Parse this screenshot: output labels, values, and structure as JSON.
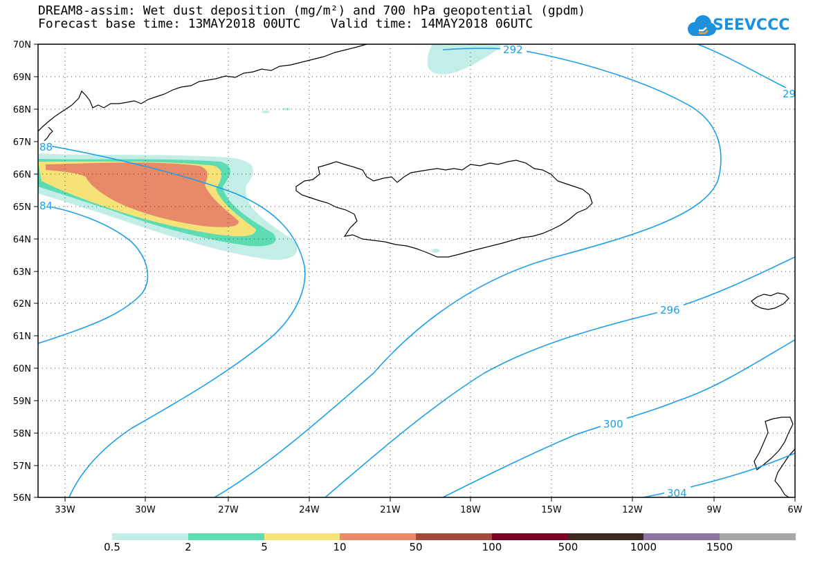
{
  "header": {
    "title_line1": "DREAM8-assim: Wet dust deposition (mg/m²) and 700 hPa geopotential (gpdm)",
    "title_line2": "Forecast base time: 13MAY2018 00UTC    Valid time: 14MAY2018 06UTC",
    "logo_text": "SEEVCCC"
  },
  "map": {
    "projection": "lat-lon",
    "lat_range": [
      56,
      70
    ],
    "lon_range": [
      -34.2,
      -6
    ],
    "lat_ticks": [
      "70N",
      "69N",
      "68N",
      "67N",
      "66N",
      "65N",
      "64N",
      "63N",
      "62N",
      "61N",
      "60N",
      "59N",
      "58N",
      "57N",
      "56N"
    ],
    "lon_ticks": [
      "33W",
      "30W",
      "27W",
      "24W",
      "21W",
      "18W",
      "15W",
      "12W",
      "9W",
      "6W"
    ],
    "grid": "dotted",
    "contour_labels": [
      "292",
      "296",
      "300",
      "304",
      "88",
      "84",
      "29"
    ],
    "contour_color": "#1aa0e8"
  },
  "legend": {
    "labels": [
      "0.5",
      "2",
      "5",
      "10",
      "50",
      "100",
      "500",
      "1000",
      "1500"
    ],
    "colors": [
      "#c2eee7",
      "#5ddcb4",
      "#f5e37a",
      "#e88a6a",
      "#a0493d",
      "#7a0024",
      "#3b2a1f",
      "#8e74a0",
      "#a7a7a7"
    ]
  }
}
